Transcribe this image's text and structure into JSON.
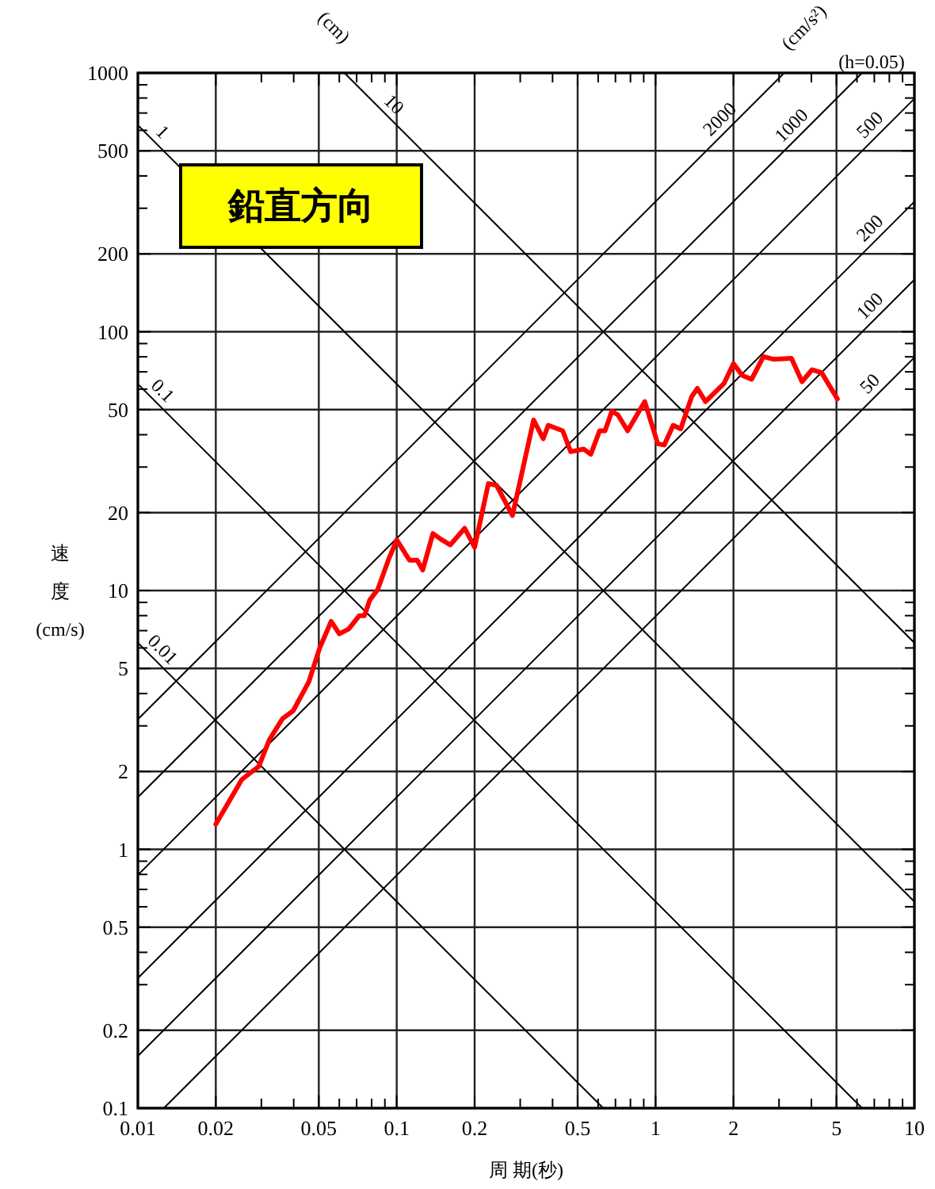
{
  "chart_data": {
    "type": "line",
    "title": "鉛直方向",
    "xlabel": "周 期(秒)",
    "ylabel": "速度(cm/s)",
    "log": "xy",
    "grid": true,
    "xlim": [
      0.01,
      10
    ],
    "ylim": [
      0.1,
      1000
    ],
    "xticks": [
      0.01,
      0.02,
      {
        "value": 0.03,
        "label": null
      },
      {
        "value": 0.04,
        "label": null
      },
      0.05,
      {
        "value": 0.06,
        "label": null
      },
      {
        "value": 0.07,
        "label": null
      },
      {
        "value": 0.08,
        "label": null
      },
      {
        "value": 0.09,
        "label": null
      },
      0.1,
      0.2,
      {
        "value": 0.3,
        "label": null
      },
      {
        "value": 0.4,
        "label": null
      },
      0.5,
      {
        "value": 0.6,
        "label": null
      },
      {
        "value": 0.7,
        "label": null
      },
      {
        "value": 0.8,
        "label": null
      },
      {
        "value": 0.9,
        "label": null
      },
      1,
      2,
      {
        "value": 3,
        "label": null
      },
      {
        "value": 4,
        "label": null
      },
      5,
      {
        "value": 6,
        "label": null
      },
      {
        "value": 7,
        "label": null
      },
      {
        "value": 8,
        "label": null
      },
      {
        "value": 9,
        "label": null
      },
      10
    ],
    "yticks": [
      0.1,
      0.2,
      {
        "value": 0.3,
        "label": null
      },
      {
        "value": 0.4,
        "label": null
      },
      0.5,
      {
        "value": 0.6,
        "label": null
      },
      {
        "value": 0.7,
        "label": null
      },
      {
        "value": 0.8,
        "label": null
      },
      {
        "value": 0.9,
        "label": null
      },
      1,
      2,
      {
        "value": 3,
        "label": null
      },
      {
        "value": 4,
        "label": null
      },
      5,
      {
        "value": 6,
        "label": null
      },
      {
        "value": 7,
        "label": null
      },
      {
        "value": 8,
        "label": null
      },
      {
        "value": 9,
        "label": null
      },
      10,
      20,
      {
        "value": 30,
        "label": null
      },
      {
        "value": 40,
        "label": null
      },
      50,
      {
        "value": 60,
        "label": null
      },
      {
        "value": 70,
        "label": null
      },
      {
        "value": 80,
        "label": null
      },
      {
        "value": 90,
        "label": null
      },
      100,
      200,
      {
        "value": 300,
        "label": null
      },
      {
        "value": 400,
        "label": null
      },
      500,
      {
        "value": 600,
        "label": null
      },
      {
        "value": 700,
        "label": null
      },
      {
        "value": 800,
        "label": null
      },
      {
        "value": 900,
        "label": null
      },
      1000
    ],
    "series": [
      {
        "color": "#ff0000",
        "x": [
          0.02,
          0.0252,
          0.0293,
          0.0322,
          0.0362,
          0.0398,
          0.0458,
          0.0504,
          0.0558,
          0.06,
          0.0652,
          0.0717,
          0.0751,
          0.0787,
          0.0845,
          0.0928,
          0.1,
          0.112,
          0.12,
          0.126,
          0.138,
          0.148,
          0.161,
          0.183,
          0.2,
          0.226,
          0.243,
          0.28,
          0.338,
          0.368,
          0.385,
          0.438,
          0.47,
          0.528,
          0.562,
          0.608,
          0.638,
          0.678,
          0.716,
          0.78,
          0.908,
          1.02,
          1.08,
          1.17,
          1.25,
          1.38,
          1.45,
          1.56,
          1.84,
          2,
          2.16,
          2.35,
          2.61,
          2.87,
          3.35,
          3.68,
          4.02,
          4.38,
          5.04
        ],
        "values": [
          1.25,
          1.86,
          2.09,
          2.65,
          3.2,
          3.43,
          4.45,
          6,
          7.6,
          6.8,
          7.1,
          8,
          8,
          9.2,
          10.1,
          13.1,
          15.7,
          13.1,
          13.1,
          12,
          16.6,
          15.8,
          15,
          17.4,
          14.7,
          25.9,
          25.5,
          19.5,
          45.6,
          38.6,
          43.5,
          41.4,
          34.4,
          35.2,
          33.6,
          41.4,
          41.4,
          49.3,
          47.7,
          41.4,
          53.7,
          36.9,
          36.5,
          43.5,
          42.1,
          56.2,
          60.4,
          53.7,
          63.2,
          75.3,
          67.9,
          65.5,
          80.2,
          78.2,
          78.9,
          64.1,
          71.3,
          69.5,
          55
        ]
      },
      {
        "color": "#000000",
        "x": [
          0.01,
          10
        ],
        "values": [
          628,
          0.628
        ]
      },
      {
        "color": "#000000",
        "x": [
          0.0628,
          10
        ],
        "values": [
          1000,
          6.28
        ]
      },
      {
        "color": "#000000",
        "x": [
          0.01,
          6.28
        ],
        "values": [
          62.8,
          0.1
        ]
      },
      {
        "color": "#000000",
        "x": [
          0.01,
          0.628
        ],
        "values": [
          6.28,
          0.1
        ]
      },
      {
        "color": "#000000",
        "x": [
          0.01,
          3.14
        ],
        "values": [
          3.18,
          1000
        ]
      },
      {
        "color": "#000000",
        "x": [
          0.01,
          6.28
        ],
        "values": [
          1.59,
          1000
        ]
      },
      {
        "color": "#000000",
        "x": [
          0.01,
          10
        ],
        "values": [
          0.796,
          796
        ]
      },
      {
        "color": "#000000",
        "x": [
          0.01,
          10
        ],
        "values": [
          0.318,
          318
        ]
      },
      {
        "color": "#000000",
        "x": [
          0.01,
          10
        ],
        "values": [
          0.159,
          159
        ]
      },
      {
        "color": "#000000",
        "x": [
          0.0126,
          10
        ],
        "values": [
          0.1,
          79.6
        ]
      }
    ],
    "annotations": [
      "(cm)",
      "(cm/s²)",
      "(h=0.05)",
      {
        "text": "1",
        "x": 0.0115,
        "y": 546
      },
      {
        "text": "10",
        "x": 0.09,
        "y": 698
      },
      {
        "text": "0.1",
        "x": 0.0115,
        "y": 54.6
      },
      {
        "text": "0.01",
        "x": 0.0115,
        "y": 5.46
      },
      {
        "text": "2000",
        "x": 1.92,
        "y": 611
      },
      {
        "text": "1000",
        "x": 3.63,
        "y": 578
      },
      {
        "text": "500",
        "x": 7.3,
        "y": 581
      },
      {
        "text": "200",
        "x": 7.3,
        "y": 232
      },
      {
        "text": "100",
        "x": 7.3,
        "y": 116
      },
      {
        "text": "50",
        "x": 7.3,
        "y": 58.1
      }
    ]
  }
}
